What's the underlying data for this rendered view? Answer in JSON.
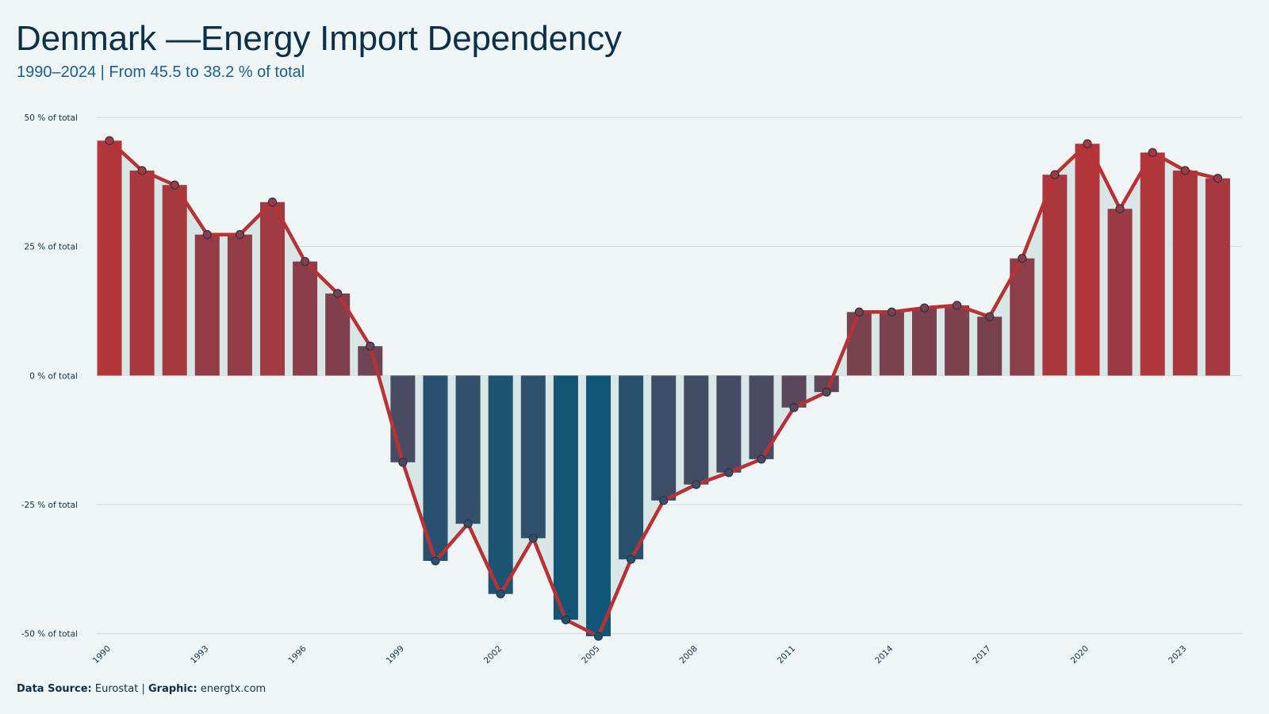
{
  "header": {
    "title": "Denmark —Energy Import Dependency",
    "subtitle": "1990–2024 | From 45.5 to 38.2 % of total"
  },
  "footer": {
    "source_label": "Data Source:",
    "source_value": "Eurostat",
    "separator": "|",
    "graphic_label": "Graphic:",
    "graphic_value": "energtx.com"
  },
  "colors": {
    "background": "#eff5f5",
    "line": "#b83235",
    "positive_bar": "#b3363a",
    "negative_bar": "#0f5678",
    "area_fill": "#d6e4e4",
    "grid": "#cfd9dc"
  },
  "chart_data": {
    "type": "bar",
    "overlay": "line",
    "x": [
      1990,
      1991,
      1992,
      1993,
      1994,
      1995,
      1996,
      1997,
      1998,
      1999,
      2000,
      2001,
      2002,
      2003,
      2004,
      2005,
      2006,
      2007,
      2008,
      2009,
      2010,
      2011,
      2012,
      2013,
      2014,
      2015,
      2016,
      2017,
      2018,
      2019,
      2020,
      2021,
      2022,
      2023,
      2024
    ],
    "values": [
      45.5,
      39.7,
      36.9,
      27.3,
      27.3,
      33.6,
      22.1,
      15.9,
      5.7,
      -16.8,
      -35.9,
      -28.7,
      -42.3,
      -31.5,
      -47.3,
      -50.5,
      -35.6,
      -24.2,
      -21.1,
      -18.8,
      -16.2,
      -6.2,
      -3.2,
      12.3,
      12.3,
      13.1,
      13.6,
      11.4,
      22.7,
      38.9,
      44.9,
      32.3,
      43.2,
      39.7,
      38.2
    ],
    "x_tick_labels": [
      "1990",
      "1993",
      "1996",
      "1999",
      "2002",
      "2005",
      "2008",
      "2011",
      "2014",
      "2017",
      "2020",
      "2023"
    ],
    "y_ticks": [
      50,
      25,
      0,
      -25,
      -50
    ],
    "y_tick_labels": [
      "50 % of total",
      "25 % of total",
      "0 % of total",
      "-25 % of total",
      "-50 % of total"
    ],
    "ylim": [
      -50.5,
      50
    ],
    "unit": "% of total",
    "grid": true,
    "legend": "none"
  }
}
